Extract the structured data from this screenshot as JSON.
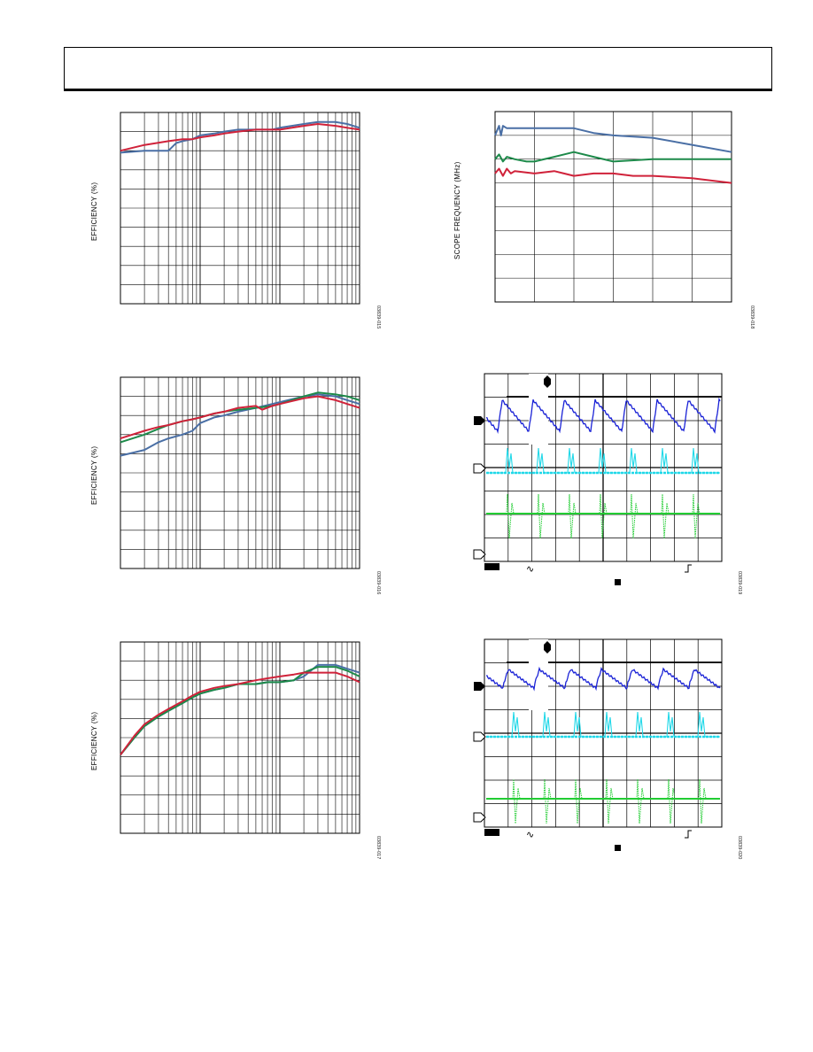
{
  "page": {
    "header": ""
  },
  "figures": [
    {
      "id": "fig15",
      "kind": "efficiency-log",
      "ylabel": "EFFICIENCY (%)",
      "fignum": "03839-015",
      "series_colors": [
        "#4a6fa5",
        "#d0223a"
      ],
      "chart_data": {
        "type": "line",
        "xscale": "log",
        "xlim": [
          1,
          1000
        ],
        "ylim": [
          0,
          100
        ],
        "series": [
          {
            "color": "#4a6fa5",
            "x": [
              1,
              2,
              4,
              5,
              6,
              8,
              10,
              15,
              20,
              30,
              50,
              80,
              100,
              200,
              300,
              500,
              700,
              1000
            ],
            "y": [
              79,
              80,
              80,
              84,
              85,
              86,
              88,
              89,
              90,
              91,
              91,
              91,
              92,
              94,
              95,
              95,
              94,
              92
            ]
          },
          {
            "color": "#d0223a",
            "x": [
              1,
              2,
              4,
              6,
              8,
              10,
              15,
              20,
              30,
              50,
              80,
              100,
              200,
              300,
              500,
              700,
              1000
            ],
            "y": [
              80,
              83,
              85,
              86,
              86,
              87,
              88,
              89,
              90,
              91,
              91,
              91,
              93,
              94,
              93,
              92,
              91
            ]
          }
        ]
      }
    },
    {
      "id": "fig16",
      "kind": "efficiency-log",
      "ylabel": "EFFICIENCY (%)",
      "fignum": "03839-016",
      "series_colors": [
        "#4a6fa5",
        "#1d8a4a",
        "#d0223a"
      ],
      "chart_data": {
        "type": "line",
        "xscale": "log",
        "xlim": [
          1,
          1000
        ],
        "ylim": [
          0,
          100
        ],
        "series": [
          {
            "color": "#4a6fa5",
            "x": [
              1,
              2,
              3,
              4,
              6,
              8,
              10,
              15,
              20,
              30,
              50,
              80,
              100,
              200,
              300,
              500,
              700,
              1000
            ],
            "y": [
              59,
              62,
              66,
              68,
              70,
              72,
              76,
              79,
              80,
              82,
              84,
              86,
              87,
              90,
              91,
              90,
              88,
              86
            ]
          },
          {
            "color": "#1d8a4a",
            "x": [
              1,
              2,
              3,
              4,
              6,
              8,
              10,
              15,
              20,
              30,
              50,
              80,
              100,
              200,
              300,
              500,
              700,
              1000
            ],
            "y": [
              66,
              70,
              73,
              75,
              77,
              78,
              79,
              81,
              82,
              83,
              84,
              85,
              86,
              90,
              92,
              91,
              90,
              88
            ]
          },
          {
            "color": "#d0223a",
            "x": [
              1,
              2,
              3,
              4,
              6,
              8,
              10,
              15,
              20,
              30,
              50,
              60,
              80,
              100,
              200,
              300,
              500,
              700,
              1000
            ],
            "y": [
              68,
              72,
              74,
              75,
              77,
              78,
              79,
              81,
              82,
              84,
              85,
              83,
              85,
              86,
              89,
              90,
              88,
              86,
              84
            ]
          }
        ]
      }
    },
    {
      "id": "fig17",
      "kind": "efficiency-log",
      "ylabel": "EFFICIENCY (%)",
      "fignum": "03839-017",
      "series_colors": [
        "#4a6fa5",
        "#1d8a4a",
        "#d0223a"
      ],
      "chart_data": {
        "type": "line",
        "xscale": "log",
        "xlim": [
          1,
          1000
        ],
        "ylim": [
          0,
          100
        ],
        "series": [
          {
            "color": "#4a6fa5",
            "x": [
              1,
              1.5,
              2,
              3,
              4,
              6,
              8,
              10,
              15,
              20,
              30,
              50,
              70,
              100,
              150,
              200,
              300,
              500,
              700,
              1000
            ],
            "y": [
              41,
              50,
              56,
              61,
              64,
              68,
              71,
              73,
              75,
              76,
              78,
              78,
              79,
              79,
              80,
              82,
              88,
              88,
              86,
              84
            ]
          },
          {
            "color": "#1d8a4a",
            "x": [
              1,
              1.5,
              2,
              3,
              4,
              6,
              8,
              10,
              15,
              20,
              30,
              50,
              70,
              100,
              150,
              200,
              300,
              500,
              700,
              1000
            ],
            "y": [
              41,
              50,
              56,
              61,
              64,
              68,
              71,
              73,
              75,
              76,
              78,
              78,
              79,
              79,
              80,
              84,
              87,
              87,
              85,
              82
            ]
          },
          {
            "color": "#d0223a",
            "x": [
              1,
              1.5,
              2,
              3,
              4,
              6,
              8,
              10,
              15,
              20,
              30,
              50,
              70,
              100,
              150,
              200,
              300,
              500,
              700,
              1000
            ],
            "y": [
              41,
              51,
              57,
              62,
              65,
              69,
              72,
              74,
              76,
              77,
              78,
              80,
              81,
              82,
              83,
              84,
              84,
              84,
              82,
              79
            ]
          }
        ]
      }
    },
    {
      "id": "fig18",
      "kind": "frequency-linear",
      "ylabel": "SCOPE FREQUENCY (MHz)",
      "fignum": "03839-018",
      "series_colors": [
        "#4a6fa5",
        "#1d8a4a",
        "#d0223a"
      ],
      "chart_data": {
        "type": "line",
        "xlim": [
          0,
          6
        ],
        "ylim": [
          0,
          8
        ],
        "series": [
          {
            "color": "#4a6fa5",
            "x": [
              0,
              0.05,
              0.1,
              0.15,
              0.2,
              0.3,
              0.5,
              1,
              1.5,
              2,
              2.5,
              3,
              4,
              5,
              6
            ],
            "y": [
              7.0,
              7.2,
              7.4,
              7.0,
              7.4,
              7.3,
              7.3,
              7.3,
              7.3,
              7.3,
              7.1,
              7.0,
              6.9,
              6.6,
              6.3
            ]
          },
          {
            "color": "#1d8a4a",
            "x": [
              0,
              0.1,
              0.2,
              0.3,
              0.5,
              0.8,
              1,
              1.5,
              2,
              2.5,
              3,
              4,
              5,
              6
            ],
            "y": [
              6.0,
              6.2,
              5.9,
              6.1,
              6.0,
              5.9,
              5.9,
              6.1,
              6.3,
              6.1,
              5.9,
              6.0,
              6.0,
              6.0
            ]
          },
          {
            "color": "#d0223a",
            "x": [
              0,
              0.1,
              0.2,
              0.3,
              0.4,
              0.5,
              1,
              1.5,
              2,
              2.5,
              3,
              3.5,
              4,
              5,
              6
            ],
            "y": [
              5.4,
              5.6,
              5.3,
              5.6,
              5.4,
              5.5,
              5.4,
              5.5,
              5.3,
              5.4,
              5.4,
              5.3,
              5.3,
              5.2,
              5.0
            ]
          }
        ]
      }
    },
    {
      "id": "fig19",
      "kind": "scope",
      "fignum": "03839-019",
      "series_colors": [
        "#1a22d6",
        "#20d8e8",
        "#22cc33"
      ],
      "chart_data": {
        "type": "line",
        "xlim": [
          0,
          10
        ],
        "ylim": [
          0,
          8
        ],
        "series": [
          {
            "color": "#1a22d6",
            "name": ""
          },
          {
            "color": "#20d8e8",
            "name": ""
          },
          {
            "color": "#22cc33",
            "name": ""
          }
        ]
      }
    },
    {
      "id": "fig20",
      "kind": "scope",
      "fignum": "03839-020",
      "series_colors": [
        "#1a22d6",
        "#20d8e8",
        "#22cc33"
      ],
      "chart_data": {
        "type": "line",
        "xlim": [
          0,
          10
        ],
        "ylim": [
          0,
          8
        ],
        "series": [
          {
            "color": "#1a22d6",
            "name": ""
          },
          {
            "color": "#20d8e8",
            "name": ""
          },
          {
            "color": "#22cc33",
            "name": ""
          }
        ]
      }
    }
  ]
}
